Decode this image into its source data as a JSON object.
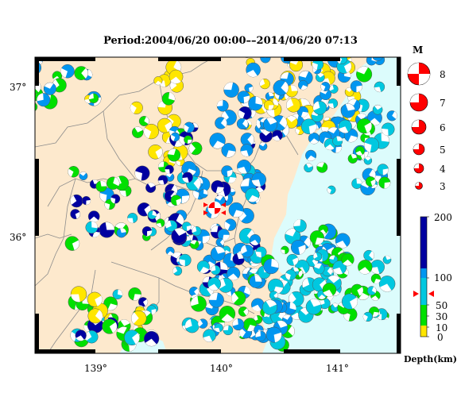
{
  "title": "Period:2004/06/20 00:00––2014/06/20 07:13",
  "map": {
    "lat_labels": [
      "37°",
      "36°"
    ],
    "lon_labels": [
      "139°",
      "140°",
      "141°"
    ],
    "land_color": "#fde9cd",
    "sea_color": "#dcfcfc",
    "epicenter_color": "#ff0000"
  },
  "magnitude_legend": {
    "heading": "M",
    "levels": [
      "8",
      "7",
      "6",
      "5",
      "4",
      "3"
    ],
    "color": "#ff0000"
  },
  "depth_scale": {
    "ticks": [
      "200",
      "100",
      "50",
      "30",
      "10",
      "0"
    ],
    "label": "Depth(km)",
    "colors": [
      "#ffe600",
      "#00e000",
      "#00c8e0",
      "#0096f0",
      "#0000a0"
    ]
  }
}
